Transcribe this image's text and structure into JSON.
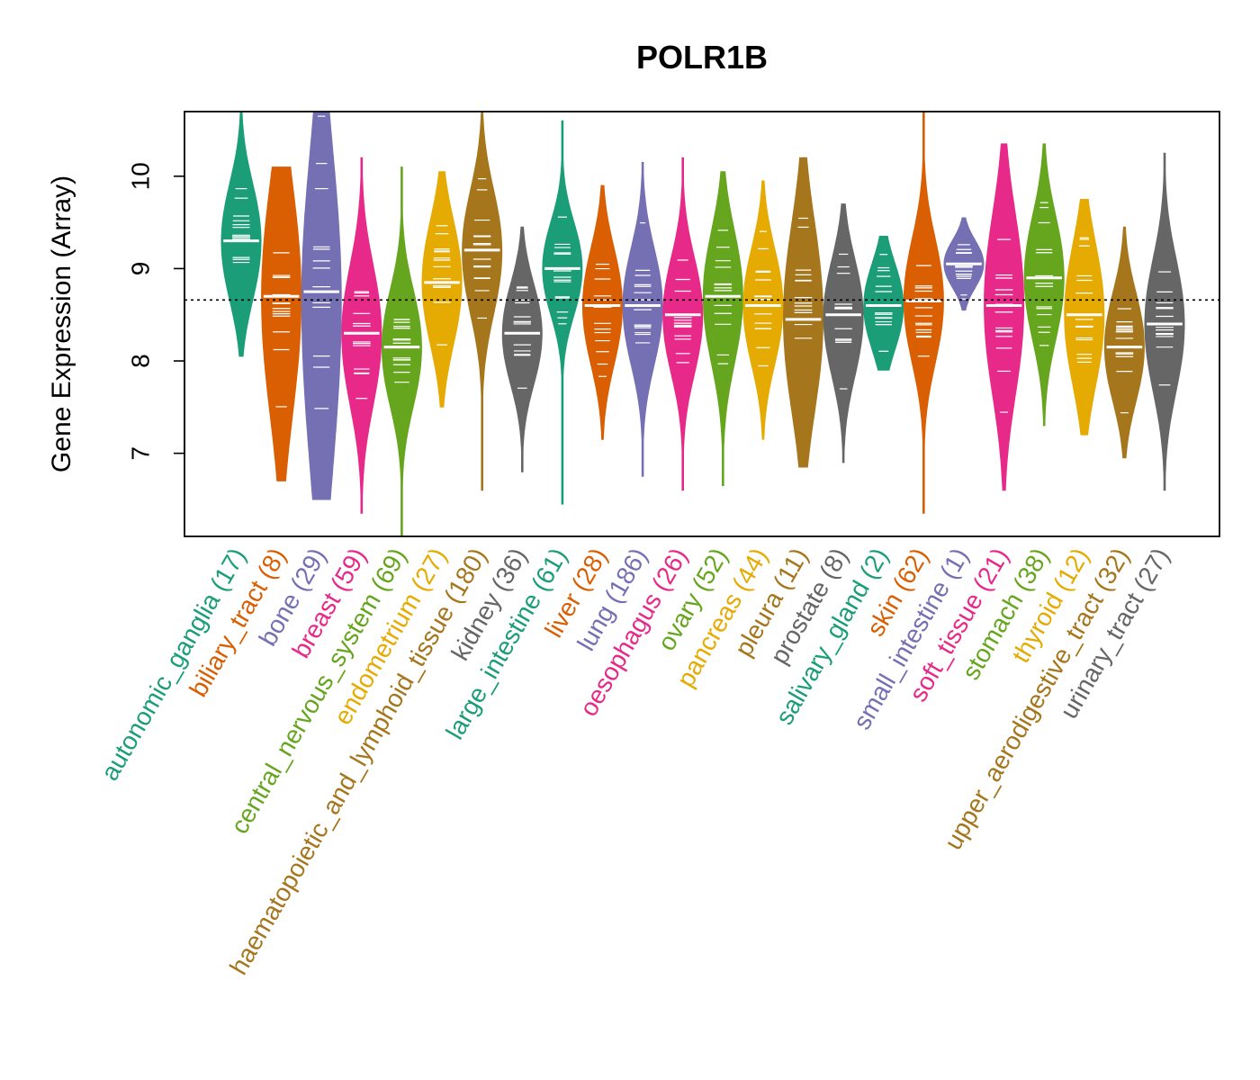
{
  "chart_data": {
    "type": "violin",
    "title": "POLR1B",
    "xlabel": "",
    "ylabel": "Gene Expression (Array)",
    "ylim": [
      6.1,
      10.7
    ],
    "yticks": [
      "7",
      "8",
      "9",
      "10"
    ],
    "reference_line": 8.66,
    "categories": [
      {
        "label": "autonomic_ganglia (17)",
        "color": "#1B9E77",
        "median": 9.3,
        "min": 8.05,
        "max": 10.7,
        "q1": 8.9,
        "q3": 9.65
      },
      {
        "label": "biliary_tract (8)",
        "color": "#D95F02",
        "median": 8.7,
        "min": 6.7,
        "max": 10.1,
        "q1": 7.9,
        "q3": 9.35
      },
      {
        "label": "bone (29)",
        "color": "#7570B3",
        "median": 8.75,
        "min": 6.5,
        "max": 10.7,
        "q1": 7.3,
        "q3": 9.3
      },
      {
        "label": "breast (59)",
        "color": "#E7298A",
        "median": 8.3,
        "min": 6.35,
        "max": 10.2,
        "q1": 7.8,
        "q3": 8.7
      },
      {
        "label": "central_nervous_system (69)",
        "color": "#66A61E",
        "median": 8.15,
        "min": 6.1,
        "max": 10.1,
        "q1": 7.75,
        "q3": 8.5
      },
      {
        "label": "endometrium (27)",
        "color": "#E6AB02",
        "median": 8.85,
        "min": 7.5,
        "max": 10.05,
        "q1": 8.45,
        "q3": 9.25
      },
      {
        "label": "haematopoietic_and_lymphoid_tissue (180)",
        "color": "#A6761D",
        "median": 9.2,
        "min": 6.6,
        "max": 10.7,
        "q1": 8.75,
        "q3": 9.55
      },
      {
        "label": "kidney (36)",
        "color": "#666666",
        "median": 8.3,
        "min": 6.8,
        "max": 9.45,
        "q1": 7.95,
        "q3": 8.6
      },
      {
        "label": "large_intestine (61)",
        "color": "#1B9E77",
        "median": 9.0,
        "min": 6.45,
        "max": 10.6,
        "q1": 8.7,
        "q3": 9.3
      },
      {
        "label": "liver (28)",
        "color": "#D95F02",
        "median": 8.6,
        "min": 7.15,
        "max": 9.9,
        "q1": 8.2,
        "q3": 8.95
      },
      {
        "label": "lung (186)",
        "color": "#7570B3",
        "median": 8.6,
        "min": 6.75,
        "max": 10.15,
        "q1": 8.2,
        "q3": 8.95
      },
      {
        "label": "oesophagus (26)",
        "color": "#E7298A",
        "median": 8.5,
        "min": 6.6,
        "max": 10.2,
        "q1": 8.1,
        "q3": 8.85
      },
      {
        "label": "ovary (52)",
        "color": "#66A61E",
        "median": 8.7,
        "min": 6.65,
        "max": 10.05,
        "q1": 8.25,
        "q3": 9.1
      },
      {
        "label": "pancreas (44)",
        "color": "#E6AB02",
        "median": 8.6,
        "min": 7.15,
        "max": 9.95,
        "q1": 8.2,
        "q3": 8.95
      },
      {
        "label": "pleura (11)",
        "color": "#A6761D",
        "median": 8.45,
        "min": 6.85,
        "max": 10.2,
        "q1": 7.9,
        "q3": 9.1
      },
      {
        "label": "prostate (8)",
        "color": "#666666",
        "median": 8.5,
        "min": 6.9,
        "max": 9.7,
        "q1": 8.05,
        "q3": 8.8
      },
      {
        "label": "salivary_gland (2)",
        "color": "#1B9E77",
        "median": 8.6,
        "min": 7.9,
        "max": 9.35,
        "q1": 8.3,
        "q3": 8.85
      },
      {
        "label": "skin (62)",
        "color": "#D95F02",
        "median": 8.65,
        "min": 6.35,
        "max": 10.7,
        "q1": 8.25,
        "q3": 9.05
      },
      {
        "label": "small_intestine (1)",
        "color": "#7570B3",
        "median": 9.05,
        "min": 8.55,
        "max": 9.55,
        "q1": 8.9,
        "q3": 9.2
      },
      {
        "label": "soft_tissue (21)",
        "color": "#E7298A",
        "median": 8.6,
        "min": 6.6,
        "max": 10.35,
        "q1": 8.05,
        "q3": 9.2
      },
      {
        "label": "stomach (38)",
        "color": "#66A61E",
        "median": 8.9,
        "min": 7.3,
        "max": 10.35,
        "q1": 8.5,
        "q3": 9.3
      },
      {
        "label": "thyroid (12)",
        "color": "#E6AB02",
        "median": 8.5,
        "min": 7.2,
        "max": 9.75,
        "q1": 8.05,
        "q3": 8.95
      },
      {
        "label": "upper_aerodigestive_tract (32)",
        "color": "#A6761D",
        "median": 8.15,
        "min": 6.95,
        "max": 9.45,
        "q1": 7.8,
        "q3": 8.5
      },
      {
        "label": "urinary_tract (27)",
        "color": "#666666",
        "median": 8.4,
        "min": 6.6,
        "max": 10.25,
        "q1": 7.95,
        "q3": 8.8
      }
    ]
  }
}
